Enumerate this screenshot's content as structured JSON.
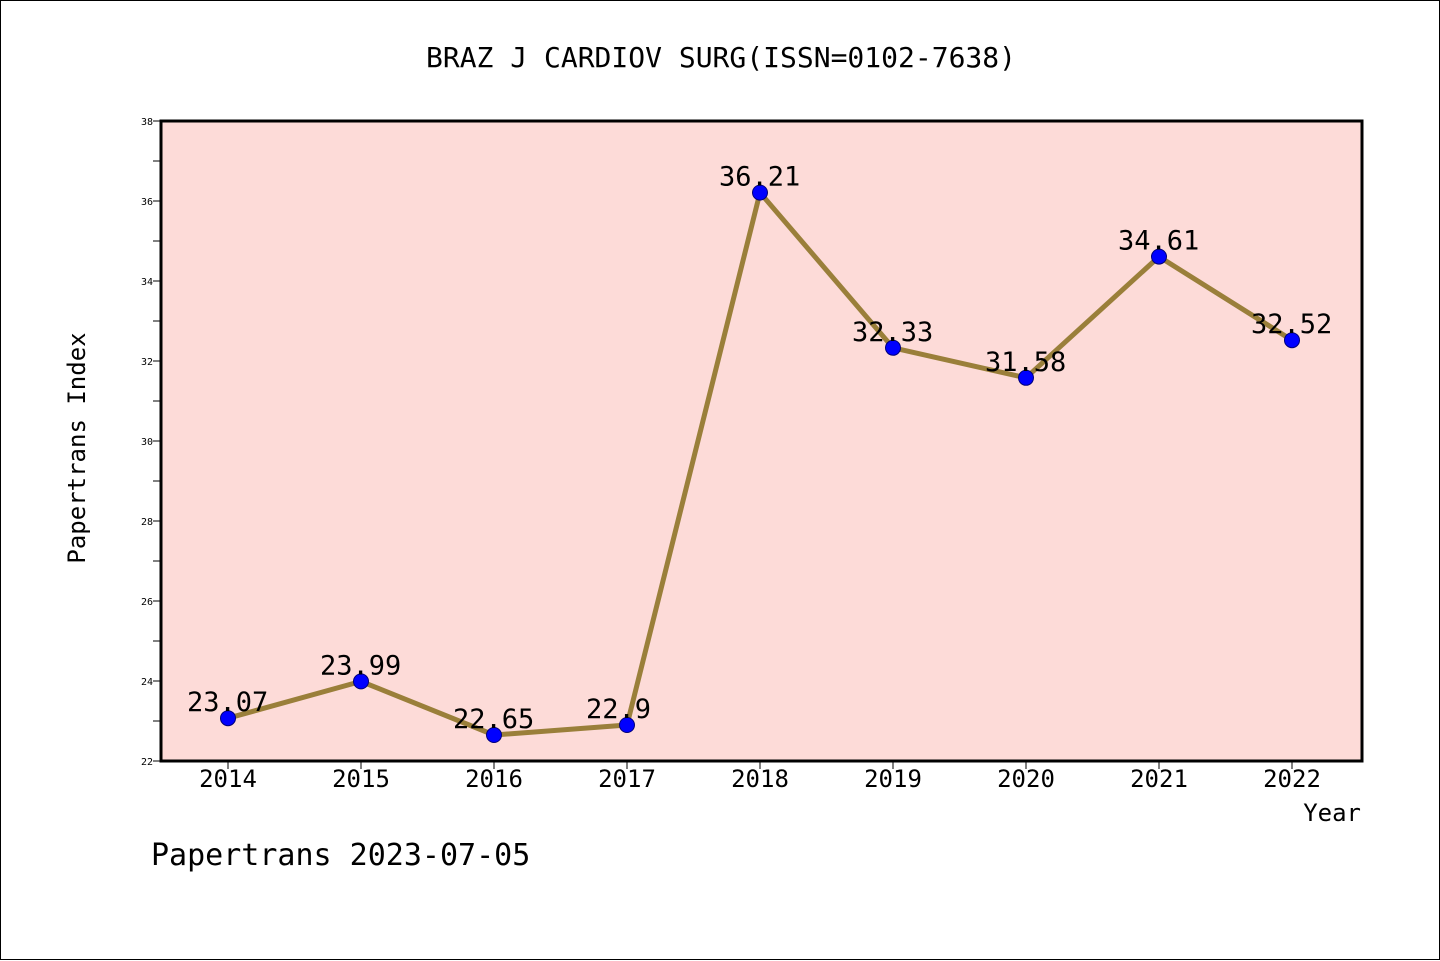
{
  "chart_data": {
    "type": "line",
    "title": "BRAZ J CARDIOV SURG(ISSN=0102-7638)",
    "xlabel": "Year",
    "ylabel": "Papertrans Index",
    "footer": "Papertrans 2023-07-05",
    "categories": [
      "2014",
      "2015",
      "2016",
      "2017",
      "2018",
      "2019",
      "2020",
      "2021",
      "2022"
    ],
    "values": [
      23.07,
      23.99,
      22.65,
      22.9,
      36.21,
      32.33,
      31.58,
      34.61,
      32.52
    ],
    "data_labels": [
      "23.07",
      "23.99",
      "22.65",
      "22.9",
      "36.21",
      "32.33",
      "31.58",
      "34.61",
      "32.52"
    ],
    "ylim": [
      22,
      38
    ],
    "yticks": [
      "22",
      "24",
      "26",
      "28",
      "30",
      "32",
      "34",
      "36",
      "38"
    ],
    "grid": false,
    "colors": {
      "plot_background": "#fddbd8",
      "line": "#9a7f3a",
      "marker": "#0000ff"
    }
  }
}
